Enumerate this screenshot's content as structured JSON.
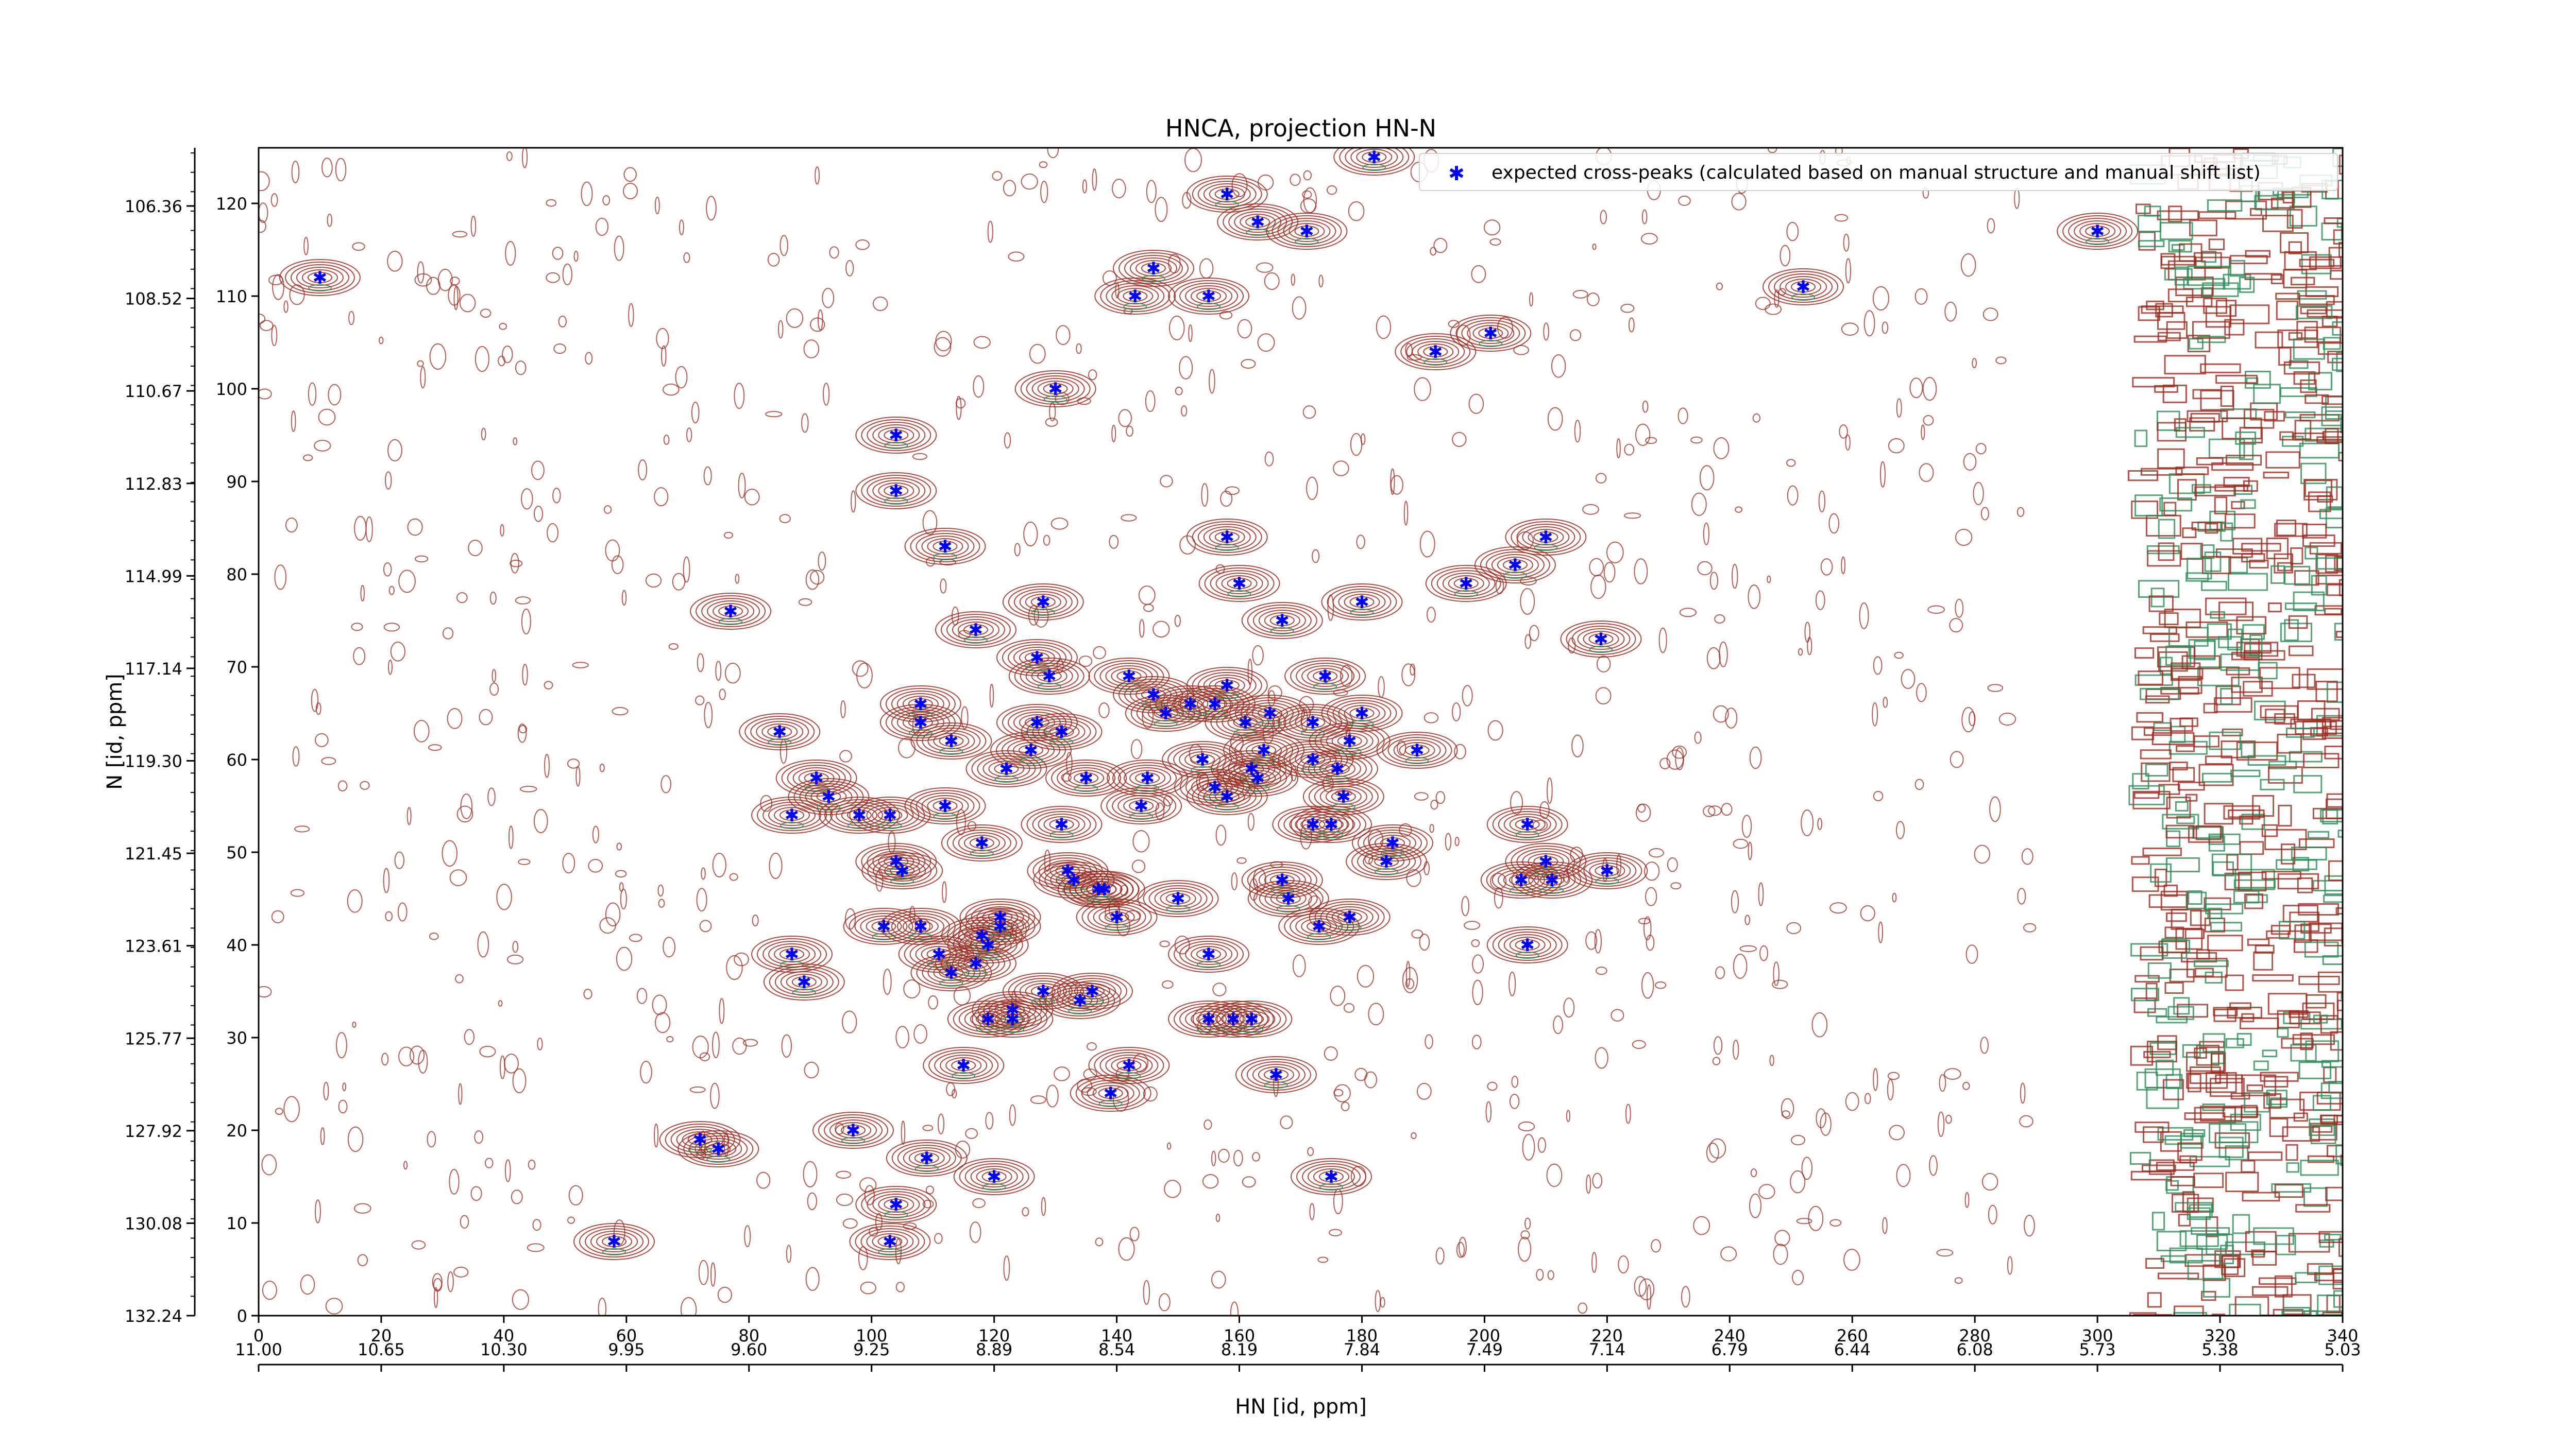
{
  "chart_data": {
    "type": "scatter",
    "title": "HNCA, projection HN-N",
    "xlabel": "HN [id, ppm]",
    "ylabel": "N [id, ppm]",
    "x_index_range": [
      0,
      340
    ],
    "y_index_range": [
      0,
      126
    ],
    "x_index_ticks": [
      0,
      20,
      40,
      60,
      80,
      100,
      120,
      140,
      160,
      180,
      200,
      220,
      240,
      260,
      280,
      300,
      320,
      340
    ],
    "y_index_ticks": [
      0,
      10,
      20,
      30,
      40,
      50,
      60,
      70,
      80,
      90,
      100,
      110,
      120
    ],
    "x_ppm_ticks": [
      "11.00",
      "10.65",
      "10.30",
      "9.95",
      "9.60",
      "9.25",
      "8.89",
      "8.54",
      "8.19",
      "7.84",
      "7.49",
      "7.14",
      "6.79",
      "6.44",
      "6.08",
      "5.73",
      "5.38",
      "5.03"
    ],
    "y_ppm_ticks": [
      "106.36",
      "108.52",
      "110.67",
      "112.83",
      "114.99",
      "117.14",
      "119.30",
      "121.45",
      "123.61",
      "125.77",
      "127.92",
      "130.08",
      "132.24"
    ],
    "legend": {
      "label": "expected cross-peaks (calculated based on manual structure and manual shift list)",
      "marker_color": "#0000ff",
      "placement": "top-right"
    },
    "contour_colors": {
      "positive": "#9b2a1e",
      "negative": "#2e8b57"
    },
    "series": [
      {
        "name": "expected cross-peaks (calculated based on manual structure and manual shift list)",
        "color": "#0000ff",
        "points": [
          [
            10,
            112
          ],
          [
            58,
            8
          ],
          [
            72,
            19
          ],
          [
            75,
            18
          ],
          [
            77,
            76
          ],
          [
            85,
            63
          ],
          [
            87,
            54
          ],
          [
            87,
            39
          ],
          [
            89,
            36
          ],
          [
            91,
            58
          ],
          [
            93,
            56
          ],
          [
            97,
            20
          ],
          [
            98,
            54
          ],
          [
            102,
            42
          ],
          [
            103,
            54
          ],
          [
            104,
            49
          ],
          [
            104,
            95
          ],
          [
            104,
            89
          ],
          [
            105,
            48
          ],
          [
            104,
            12
          ],
          [
            103,
            8
          ],
          [
            108,
            42
          ],
          [
            108,
            66
          ],
          [
            108,
            64
          ],
          [
            109,
            17
          ],
          [
            111,
            39
          ],
          [
            112,
            55
          ],
          [
            112,
            83
          ],
          [
            113,
            62
          ],
          [
            113,
            37
          ],
          [
            115,
            27
          ],
          [
            117,
            38
          ],
          [
            117,
            74
          ],
          [
            118,
            51
          ],
          [
            118,
            41
          ],
          [
            119,
            40
          ],
          [
            119,
            32
          ],
          [
            120,
            15
          ],
          [
            121,
            43
          ],
          [
            121,
            42
          ],
          [
            122,
            59
          ],
          [
            123,
            33
          ],
          [
            123,
            32
          ],
          [
            126,
            61
          ],
          [
            127,
            64
          ],
          [
            127,
            71
          ],
          [
            128,
            35
          ],
          [
            128,
            77
          ],
          [
            129,
            69
          ],
          [
            130,
            100
          ],
          [
            131,
            63
          ],
          [
            131,
            53
          ],
          [
            132,
            48
          ],
          [
            133,
            47
          ],
          [
            134,
            34
          ],
          [
            135,
            58
          ],
          [
            136,
            35
          ],
          [
            137,
            46
          ],
          [
            138,
            46
          ],
          [
            139,
            24
          ],
          [
            140,
            43
          ],
          [
            142,
            69
          ],
          [
            142,
            27
          ],
          [
            143,
            110
          ],
          [
            144,
            55
          ],
          [
            145,
            58
          ],
          [
            146,
            113
          ],
          [
            146,
            67
          ],
          [
            148,
            65
          ],
          [
            150,
            45
          ],
          [
            152,
            66
          ],
          [
            154,
            60
          ],
          [
            155,
            32
          ],
          [
            155,
            39
          ],
          [
            155,
            110
          ],
          [
            156,
            57
          ],
          [
            156,
            66
          ],
          [
            158,
            68
          ],
          [
            158,
            121
          ],
          [
            158,
            84
          ],
          [
            158,
            56
          ],
          [
            159,
            32
          ],
          [
            160,
            79
          ],
          [
            161,
            64
          ],
          [
            162,
            59
          ],
          [
            162,
            32
          ],
          [
            163,
            58
          ],
          [
            163,
            118
          ],
          [
            164,
            61
          ],
          [
            165,
            65
          ],
          [
            166,
            26
          ],
          [
            167,
            75
          ],
          [
            167,
            47
          ],
          [
            168,
            45
          ],
          [
            171,
            117
          ],
          [
            172,
            60
          ],
          [
            172,
            64
          ],
          [
            172,
            53
          ],
          [
            173,
            42
          ],
          [
            174,
            69
          ],
          [
            175,
            53
          ],
          [
            175,
            15
          ],
          [
            176,
            59
          ],
          [
            177,
            56
          ],
          [
            178,
            62
          ],
          [
            178,
            43
          ],
          [
            180,
            77
          ],
          [
            180,
            65
          ],
          [
            182,
            125
          ],
          [
            184,
            49
          ],
          [
            185,
            51
          ],
          [
            189,
            61
          ],
          [
            192,
            104
          ],
          [
            197,
            79
          ],
          [
            201,
            106
          ],
          [
            205,
            81
          ],
          [
            206,
            47
          ],
          [
            207,
            40
          ],
          [
            207,
            53
          ],
          [
            210,
            49
          ],
          [
            210,
            84
          ],
          [
            211,
            47
          ],
          [
            220,
            48
          ],
          [
            219,
            73
          ],
          [
            252,
            111
          ],
          [
            300,
            117
          ]
        ]
      }
    ]
  }
}
